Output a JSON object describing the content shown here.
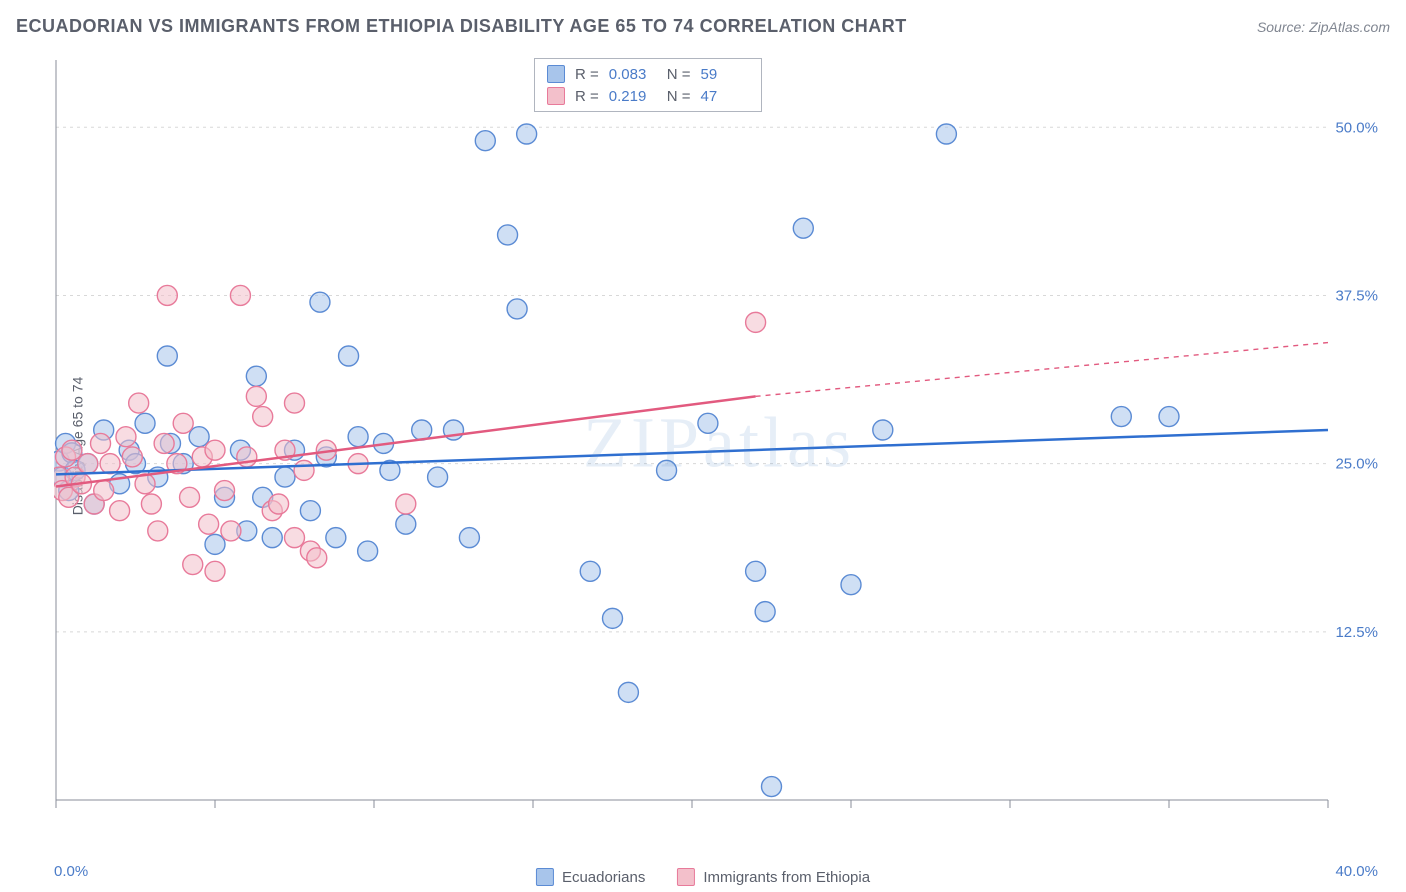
{
  "header": {
    "title": "ECUADORIAN VS IMMIGRANTS FROM ETHIOPIA DISABILITY AGE 65 TO 74 CORRELATION CHART",
    "source": "Source: ZipAtlas.com"
  },
  "chart": {
    "type": "scatter",
    "ylabel": "Disability Age 65 to 74",
    "watermark": "ZIPatlas",
    "background_color": "#ffffff",
    "grid_color": "#d8d8d8",
    "axis_color": "#888e9a",
    "tick_color": "#888e9a",
    "xlim": [
      0,
      40
    ],
    "ylim": [
      0,
      55
    ],
    "x_ticks": [
      0,
      5,
      10,
      15,
      20,
      25,
      30,
      35,
      40
    ],
    "x_tick_labels": {
      "0": "0.0%",
      "40": "40.0%"
    },
    "y_gridlines": [
      12.5,
      25.0,
      37.5,
      50.0
    ],
    "y_tick_labels": [
      "12.5%",
      "25.0%",
      "37.5%",
      "50.0%"
    ],
    "series": [
      {
        "name": "Ecuadorians",
        "fill_color": "#a8c5eb",
        "stroke_color": "#5b8bd4",
        "fill_opacity": 0.55,
        "marker_radius": 10,
        "trend_color": "#2f6fd0",
        "trend_width": 2.5,
        "trend": {
          "x0": 0,
          "y0": 24.2,
          "x1": 40,
          "y1": 27.5
        },
        "points": [
          [
            0.1,
            25.2
          ],
          [
            0.2,
            24.0
          ],
          [
            0.3,
            26.5
          ],
          [
            0.4,
            23.0
          ],
          [
            0.5,
            25.8
          ],
          [
            0.6,
            24.5
          ],
          [
            1.0,
            25.0
          ],
          [
            1.2,
            22.0
          ],
          [
            1.5,
            27.5
          ],
          [
            2.0,
            23.5
          ],
          [
            2.3,
            26.0
          ],
          [
            2.5,
            25.0
          ],
          [
            2.8,
            28.0
          ],
          [
            3.2,
            24.0
          ],
          [
            3.5,
            33.0
          ],
          [
            3.6,
            26.5
          ],
          [
            4.0,
            25.0
          ],
          [
            4.5,
            27.0
          ],
          [
            5.0,
            19.0
          ],
          [
            5.3,
            22.5
          ],
          [
            5.8,
            26.0
          ],
          [
            6.0,
            20.0
          ],
          [
            6.3,
            31.5
          ],
          [
            6.5,
            22.5
          ],
          [
            6.8,
            19.5
          ],
          [
            7.2,
            24.0
          ],
          [
            7.5,
            26.0
          ],
          [
            8.0,
            21.5
          ],
          [
            8.3,
            37.0
          ],
          [
            8.5,
            25.5
          ],
          [
            8.8,
            19.5
          ],
          [
            9.2,
            33.0
          ],
          [
            9.5,
            27.0
          ],
          [
            9.8,
            18.5
          ],
          [
            10.3,
            26.5
          ],
          [
            10.5,
            24.5
          ],
          [
            11.0,
            20.5
          ],
          [
            11.5,
            27.5
          ],
          [
            12.0,
            24.0
          ],
          [
            12.5,
            27.5
          ],
          [
            13.0,
            19.5
          ],
          [
            13.5,
            49.0
          ],
          [
            14.2,
            42.0
          ],
          [
            14.5,
            36.5
          ],
          [
            14.8,
            49.5
          ],
          [
            16.8,
            17.0
          ],
          [
            17.5,
            13.5
          ],
          [
            18.0,
            8.0
          ],
          [
            19.2,
            24.5
          ],
          [
            20.5,
            28.0
          ],
          [
            22.0,
            17.0
          ],
          [
            22.3,
            14.0
          ],
          [
            22.5,
            1.0
          ],
          [
            23.5,
            42.5
          ],
          [
            25.0,
            16.0
          ],
          [
            28.0,
            49.5
          ],
          [
            33.5,
            28.5
          ],
          [
            35.0,
            28.5
          ],
          [
            26.0,
            27.5
          ]
        ]
      },
      {
        "name": "Immigrants from Ethiopia",
        "fill_color": "#f3c0cb",
        "stroke_color": "#e87a9a",
        "fill_opacity": 0.55,
        "marker_radius": 10,
        "trend_color": "#e25a7f",
        "trend_width": 2.5,
        "trend": {
          "x0": 0,
          "y0": 23.3,
          "x1": 22,
          "y1": 30.0
        },
        "trend_extend": {
          "x1": 40,
          "y1": 34.0
        },
        "points": [
          [
            0.1,
            24.0
          ],
          [
            0.2,
            23.0
          ],
          [
            0.3,
            25.5
          ],
          [
            0.4,
            22.5
          ],
          [
            0.5,
            26.0
          ],
          [
            0.6,
            24.0
          ],
          [
            0.8,
            23.5
          ],
          [
            1.0,
            25.0
          ],
          [
            1.2,
            22.0
          ],
          [
            1.4,
            26.5
          ],
          [
            1.5,
            23.0
          ],
          [
            1.7,
            25.0
          ],
          [
            2.0,
            21.5
          ],
          [
            2.2,
            27.0
          ],
          [
            2.4,
            25.5
          ],
          [
            2.6,
            29.5
          ],
          [
            2.8,
            23.5
          ],
          [
            3.0,
            22.0
          ],
          [
            3.2,
            20.0
          ],
          [
            3.4,
            26.5
          ],
          [
            3.5,
            37.5
          ],
          [
            3.8,
            25.0
          ],
          [
            4.0,
            28.0
          ],
          [
            4.2,
            22.5
          ],
          [
            4.3,
            17.5
          ],
          [
            4.6,
            25.5
          ],
          [
            4.8,
            20.5
          ],
          [
            5.0,
            26.0
          ],
          [
            5.0,
            17.0
          ],
          [
            5.3,
            23.0
          ],
          [
            5.5,
            20.0
          ],
          [
            5.8,
            37.5
          ],
          [
            6.0,
            25.5
          ],
          [
            6.3,
            30.0
          ],
          [
            6.5,
            28.5
          ],
          [
            6.8,
            21.5
          ],
          [
            7.0,
            22.0
          ],
          [
            7.2,
            26.0
          ],
          [
            7.5,
            29.5
          ],
          [
            7.5,
            19.5
          ],
          [
            7.8,
            24.5
          ],
          [
            8.0,
            18.5
          ],
          [
            8.2,
            18.0
          ],
          [
            8.5,
            26.0
          ],
          [
            9.5,
            25.0
          ],
          [
            11.0,
            22.0
          ],
          [
            22.0,
            35.5
          ]
        ]
      }
    ],
    "stats": [
      {
        "swatch_fill": "#a8c5eb",
        "swatch_stroke": "#5b8bd4",
        "R": "0.083",
        "N": "59"
      },
      {
        "swatch_fill": "#f3c0cb",
        "swatch_stroke": "#e87a9a",
        "R": "0.219",
        "N": "47"
      }
    ],
    "legend": [
      {
        "label": "Ecuadorians",
        "swatch_fill": "#a8c5eb",
        "swatch_stroke": "#5b8bd4"
      },
      {
        "label": "Immigrants from Ethiopia",
        "swatch_fill": "#f3c0cb",
        "swatch_stroke": "#e87a9a"
      }
    ]
  }
}
